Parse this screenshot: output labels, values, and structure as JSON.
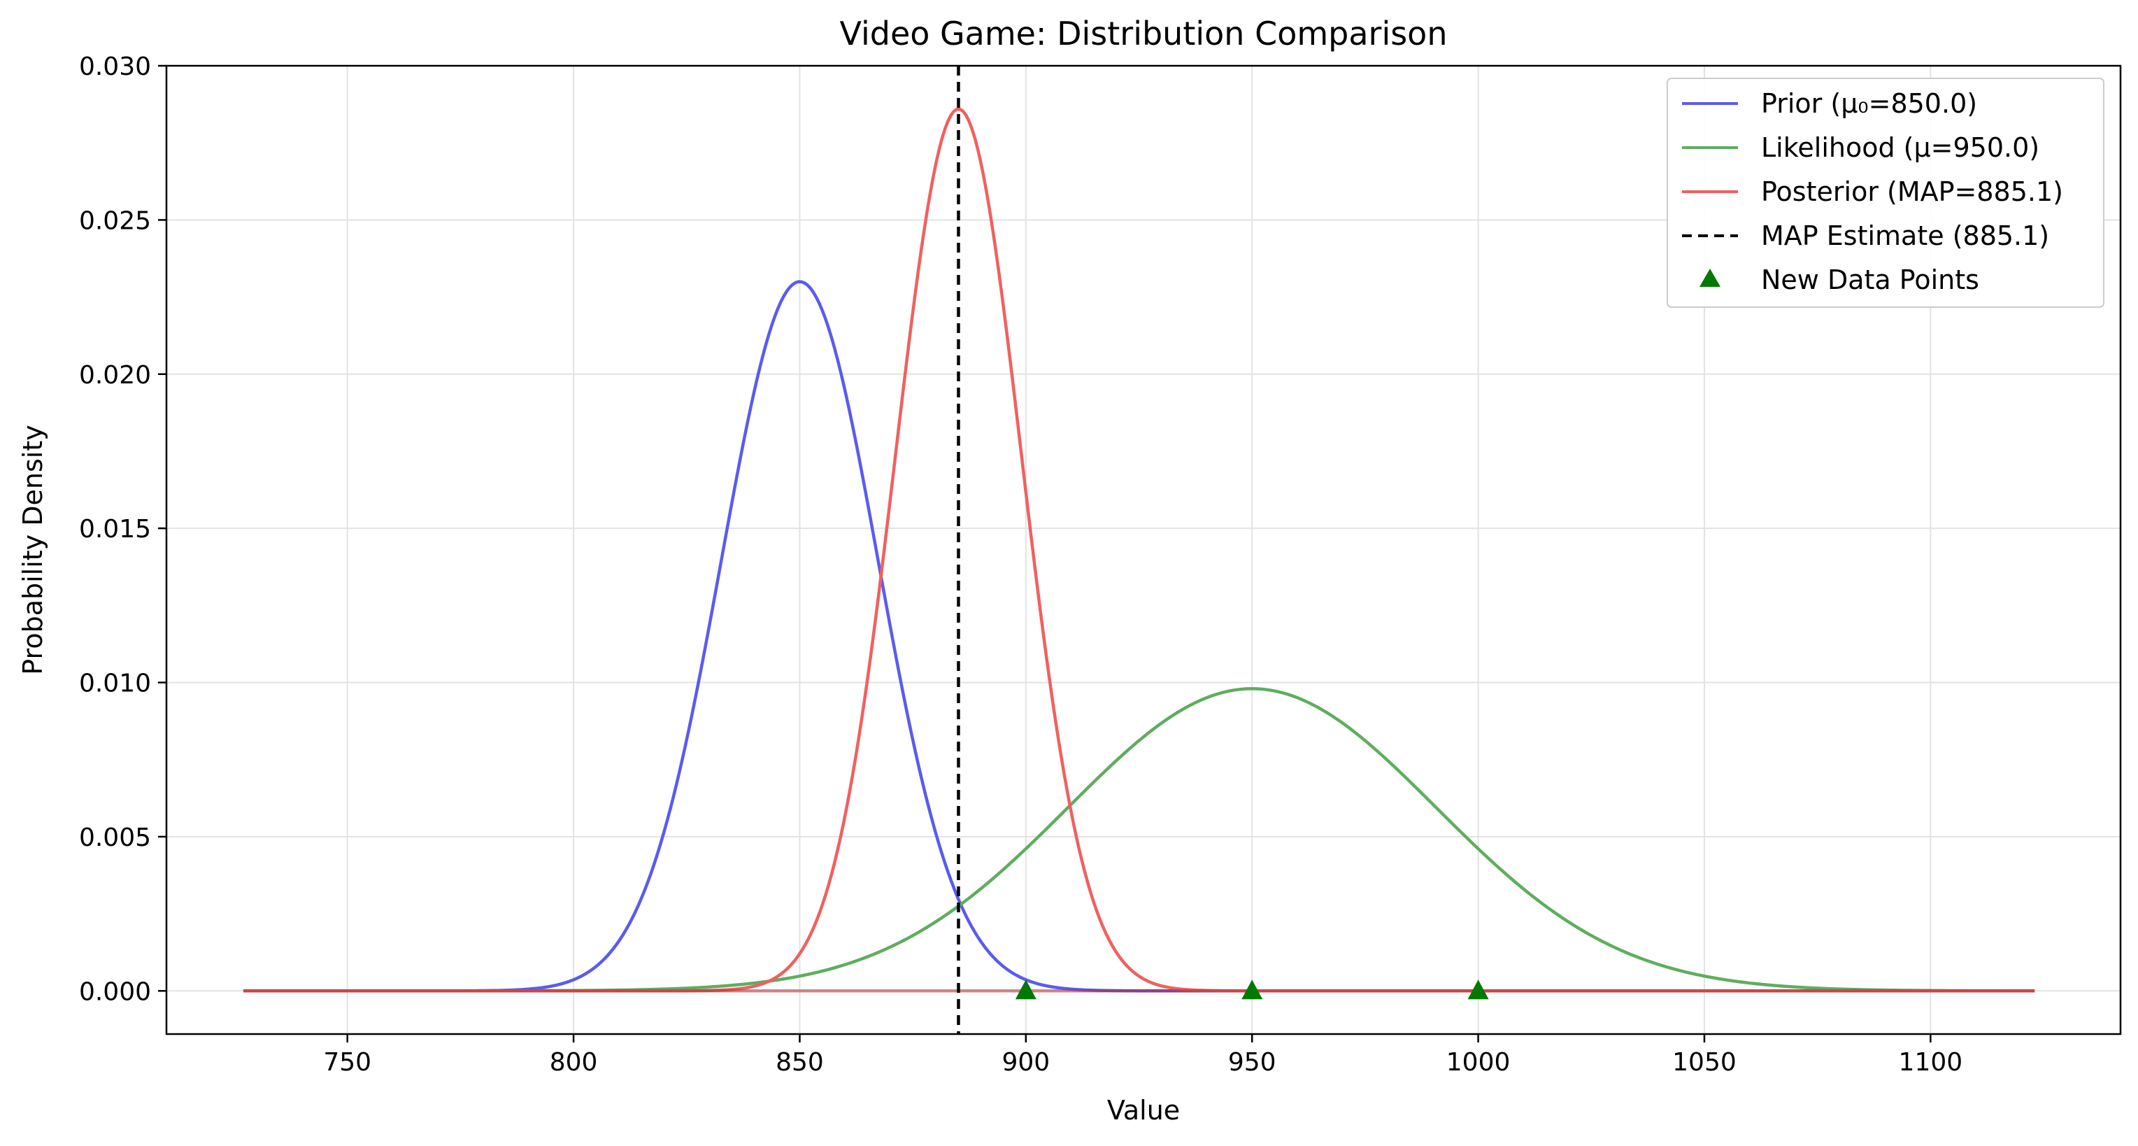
{
  "chart_data": {
    "type": "line",
    "title": "Video Game: Distribution Comparison",
    "xlabel": "Value",
    "ylabel": "Probability Density",
    "xlim": [
      710,
      1142
    ],
    "ylim": [
      -0.0014,
      0.03
    ],
    "x_ticks": [
      750,
      800,
      850,
      900,
      950,
      1000,
      1050,
      1100
    ],
    "x_tick_labels": [
      "750",
      "800",
      "850",
      "900",
      "950",
      "1000",
      "1050",
      "1100"
    ],
    "y_ticks": [
      0.0,
      0.005,
      0.01,
      0.015,
      0.02,
      0.025,
      0.03
    ],
    "y_tick_labels": [
      "0.000",
      "0.005",
      "0.010",
      "0.015",
      "0.020",
      "0.025",
      "0.030"
    ],
    "grid": true,
    "legend_position": "top-right",
    "x_range": [
      727,
      1123
    ],
    "series": [
      {
        "name": "Prior (μ₀=850.0)",
        "kind": "normal",
        "mean": 850.0,
        "peak": 0.023,
        "color": "#5b5bf0"
      },
      {
        "name": "Likelihood (μ=950.0)",
        "kind": "normal",
        "mean": 950.0,
        "peak": 0.0098,
        "color": "#5fad5f"
      },
      {
        "name": "Posterior (MAP=885.1)",
        "kind": "normal",
        "mean": 885.1,
        "peak": 0.0286,
        "color": "#f06060"
      }
    ],
    "map_line": {
      "name": "MAP Estimate (885.1)",
      "x": 885.1,
      "color": "#000000",
      "style": "dashed"
    },
    "data_points": {
      "name": "New Data Points",
      "x": [
        900,
        950,
        1000
      ],
      "y": [
        0.0,
        0.0,
        0.0
      ],
      "color": "#007a00",
      "marker": "triangle"
    },
    "baseline_color": "#b03030"
  }
}
